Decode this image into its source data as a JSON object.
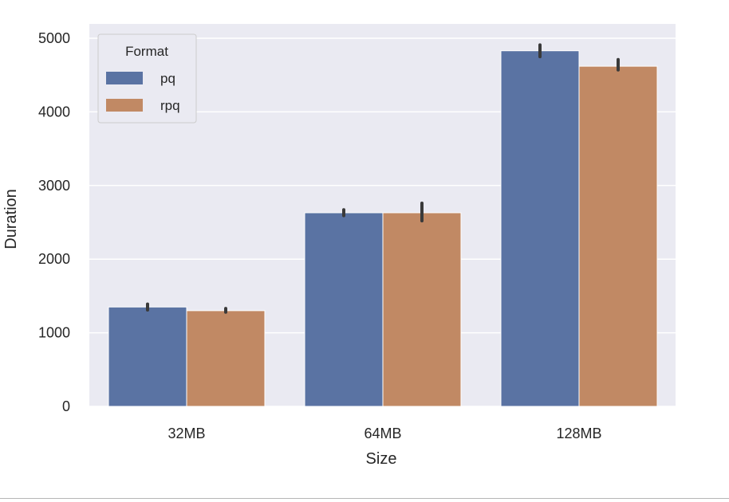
{
  "chart_data": {
    "type": "bar",
    "xlabel": "Size",
    "ylabel": "Duration",
    "categories": [
      "32MB",
      "64MB",
      "128MB"
    ],
    "ylim": [
      0,
      5000
    ],
    "yticks": [
      0,
      1000,
      2000,
      3000,
      4000,
      5000
    ],
    "grid": true,
    "legend": {
      "title": "Format",
      "position": "top-left"
    },
    "series": [
      {
        "name": "pq",
        "color": "#5a73a3",
        "values": [
          1350,
          2630,
          4830
        ],
        "err_low": [
          1310,
          2590,
          4750
        ],
        "err_high": [
          1390,
          2670,
          4910
        ]
      },
      {
        "name": "rpq",
        "color": "#c18964",
        "values": [
          1300,
          2630,
          4620
        ],
        "err_low": [
          1280,
          2520,
          4570
        ],
        "err_high": [
          1330,
          2760,
          4710
        ]
      }
    ],
    "colors": {
      "background": "#eaeaf2",
      "grid": "#ffffff",
      "error_bar": "#3a3a3a"
    }
  }
}
